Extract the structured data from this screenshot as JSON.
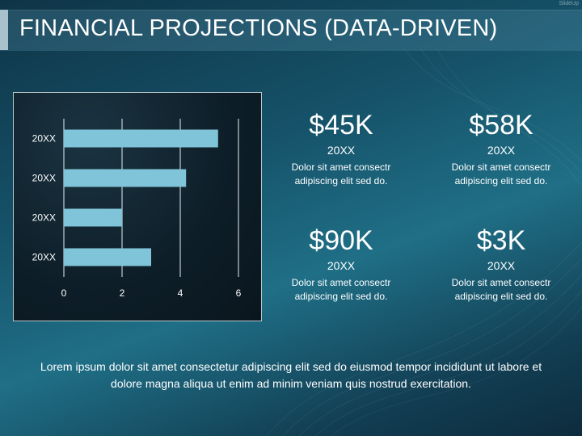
{
  "slide": {
    "title": "FINANCIAL PROJECTIONS (DATA-DRIVEN)",
    "corner_mark": "SlideUp",
    "footer_text": "Lorem ipsum dolor sit amet consectetur adipiscing elit sed do eiusmod tempor incididunt ut labore et dolore magna aliqua ut enim ad minim veniam quis nostrud exercitation."
  },
  "colors": {
    "bar": "#7fc4d9",
    "grid": "#e6eef2",
    "tick_text": "#ffffff"
  },
  "chart_data": {
    "type": "bar",
    "orientation": "horizontal",
    "categories": [
      "20XX",
      "20XX",
      "20XX",
      "20XX"
    ],
    "values": [
      5.3,
      4.2,
      2.0,
      3.0
    ],
    "xlim": [
      0,
      6
    ],
    "x_ticks": [
      "0",
      "2",
      "4",
      "6"
    ],
    "grid": true,
    "legend": "none",
    "title": "",
    "xlabel": "",
    "ylabel": ""
  },
  "kpis": [
    {
      "value": "$45K",
      "year": "20XX",
      "desc_line1": "Dolor sit amet consectr",
      "desc_line2": "adipiscing elit sed do."
    },
    {
      "value": "$58K",
      "year": "20XX",
      "desc_line1": "Dolor sit amet consectr",
      "desc_line2": "adipiscing elit sed do."
    },
    {
      "value": "$90K",
      "year": "20XX",
      "desc_line1": "Dolor sit amet consectr",
      "desc_line2": "adipiscing elit sed do."
    },
    {
      "value": "$3K",
      "year": "20XX",
      "desc_line1": "Dolor sit amet consectr",
      "desc_line2": "adipiscing elit sed do."
    }
  ]
}
